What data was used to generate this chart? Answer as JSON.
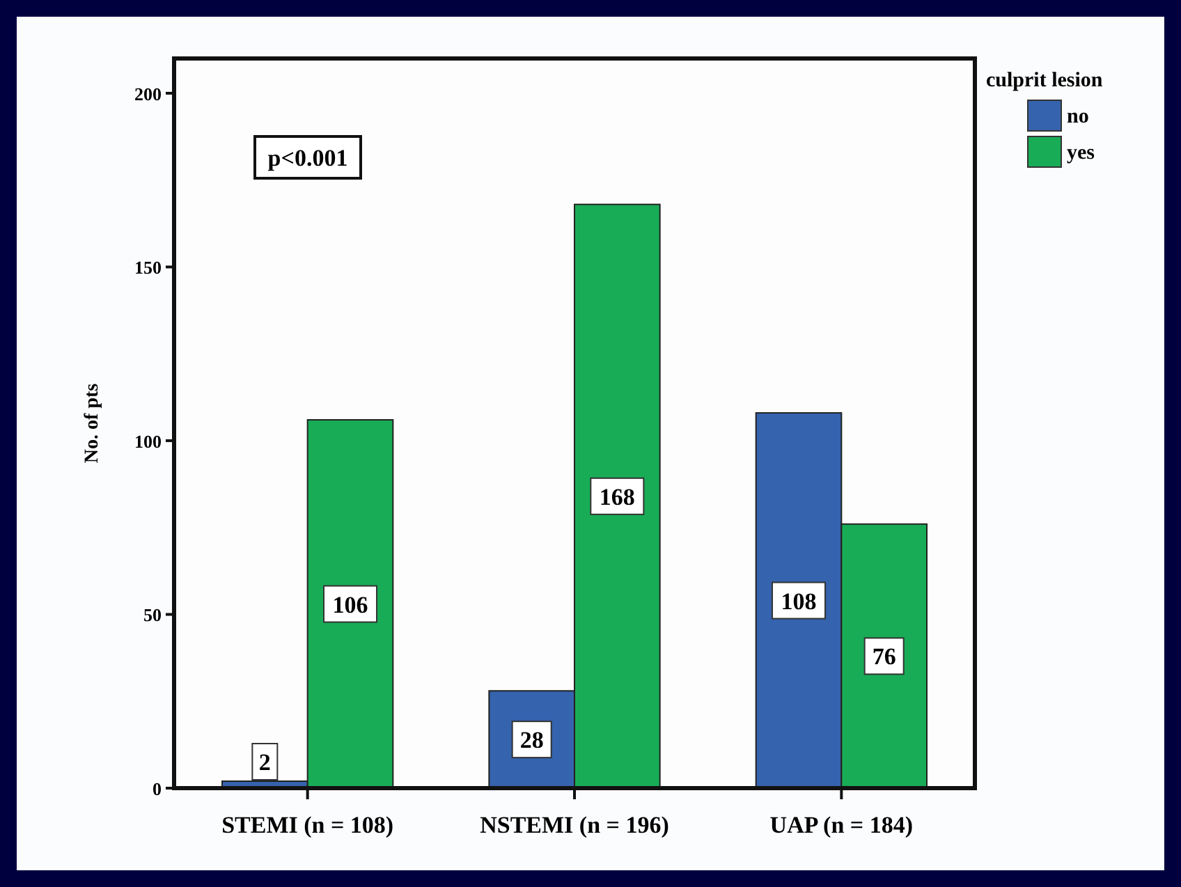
{
  "chart_data": {
    "type": "bar",
    "ylabel": "No. of pts",
    "legend_title": "culprit lesion",
    "categories": [
      "STEMI (n = 108)",
      "NSTEMI (n = 196)",
      "UAP (n = 184)"
    ],
    "series": [
      {
        "name": "no",
        "color": "#3563ad",
        "values": [
          2,
          28,
          108
        ]
      },
      {
        "name": "yes",
        "color": "#19ac57",
        "values": [
          106,
          168,
          76
        ]
      }
    ],
    "ylim": [
      0,
      210
    ],
    "yticks": [
      0,
      50,
      100,
      150,
      200
    ],
    "data_labels": true,
    "legend": "top right",
    "grid": false,
    "annotations": [
      "p<0.001"
    ]
  }
}
